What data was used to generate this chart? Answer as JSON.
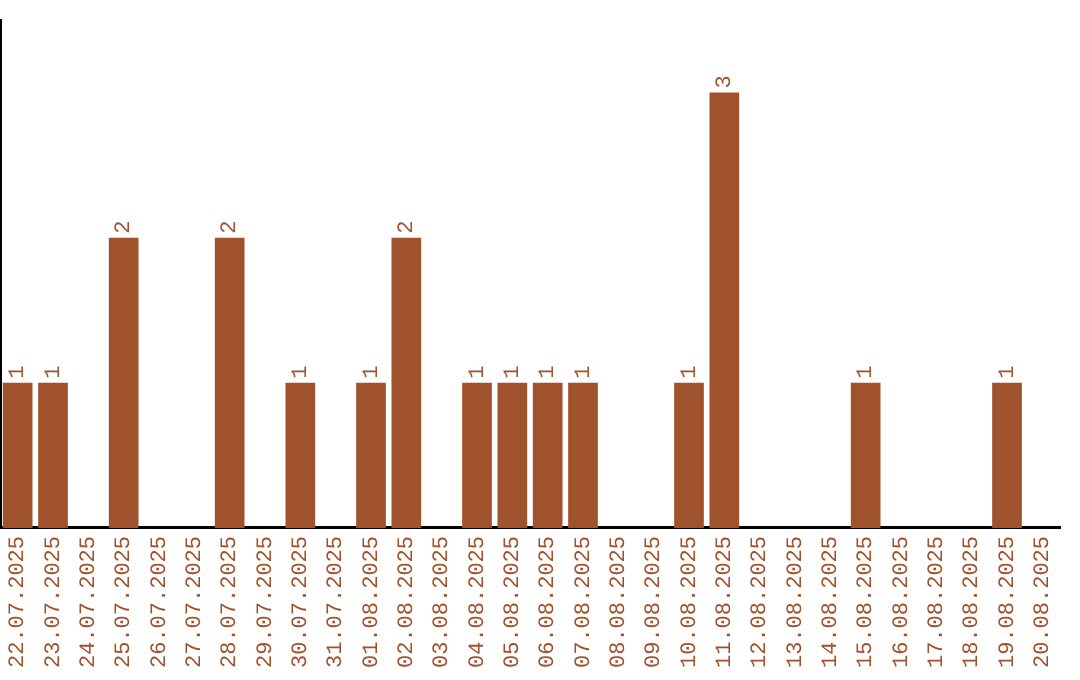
{
  "chart_data": {
    "type": "bar",
    "categories": [
      "22.07.2025",
      "23.07.2025",
      "24.07.2025",
      "25.07.2025",
      "26.07.2025",
      "27.07.2025",
      "28.07.2025",
      "29.07.2025",
      "30.07.2025",
      "31.07.2025",
      "01.08.2025",
      "02.08.2025",
      "03.08.2025",
      "04.08.2025",
      "05.08.2025",
      "06.08.2025",
      "07.08.2025",
      "08.08.2025",
      "09.08.2025",
      "10.08.2025",
      "11.08.2025",
      "12.08.2025",
      "13.08.2025",
      "14.08.2025",
      "15.08.2025",
      "16.08.2025",
      "17.08.2025",
      "18.08.2025",
      "19.08.2025",
      "20.08.2025"
    ],
    "values": [
      1,
      1,
      0,
      2,
      0,
      0,
      2,
      0,
      1,
      0,
      1,
      2,
      0,
      1,
      1,
      1,
      1,
      0,
      0,
      1,
      3,
      0,
      0,
      0,
      1,
      0,
      0,
      0,
      1,
      0
    ],
    "value_labels": [
      "1",
      "1",
      null,
      "2",
      null,
      null,
      "2",
      null,
      "1",
      null,
      "1",
      "2",
      null,
      "1",
      "1",
      "1",
      "1",
      null,
      null,
      "1",
      "3",
      null,
      null,
      null,
      "1",
      null,
      null,
      null,
      "1",
      null
    ],
    "color": "#a0522d",
    "tick_labels": "x",
    "grid": false,
    "legend": false
  }
}
